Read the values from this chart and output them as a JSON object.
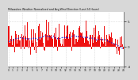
{
  "title": "Milwaukee Weather Normalized and Avg Wind Direction (Last 24 Hours)",
  "background_color": "#d8d8d8",
  "plot_bg_color": "#ffffff",
  "grid_color": "#bbbbbb",
  "bar_color": "#ee1111",
  "line_color": "#1111cc",
  "n_points": 144,
  "y_min": -4,
  "y_max": 7,
  "ytick_vals": [
    5,
    0,
    -4
  ],
  "ytick_labels": [
    "5",
    "0",
    "-4"
  ],
  "seed": 7
}
